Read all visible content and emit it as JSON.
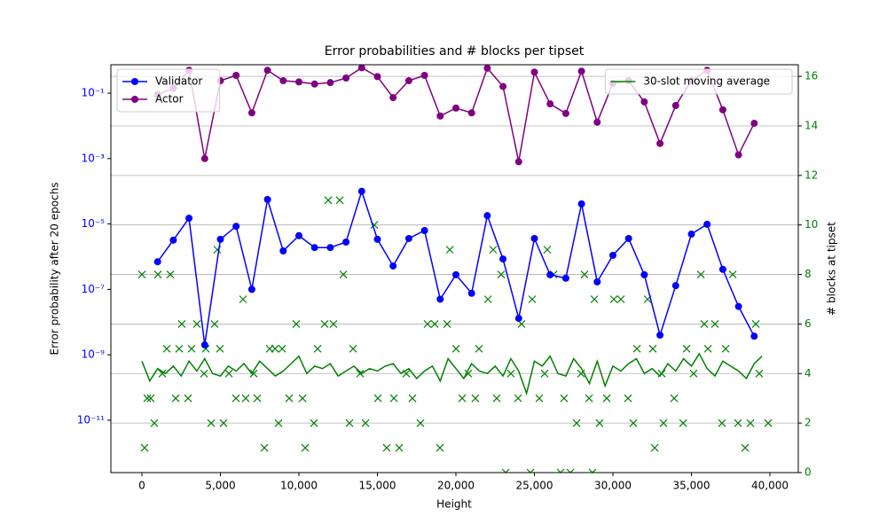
{
  "chart_data": {
    "type": "line",
    "title": "Error probabilities and # blocks per tipset",
    "xlabel": "Height",
    "ylabel": "Error probability after 20 epochs",
    "y2label": "# blocks at tipset",
    "ylabel_color": "blue",
    "y2label_color": "green",
    "xlim": [
      -1977,
      41808
    ],
    "xticks": [
      0,
      {
        "value": 5000,
        "label": "5,000"
      },
      {
        "value": 10000,
        "label": "10,000"
      },
      {
        "value": 15000,
        "label": "15,000"
      },
      {
        "value": 20000,
        "label": "20,000"
      },
      {
        "value": 25000,
        "label": "25,000"
      },
      {
        "value": 30000,
        "label": "30,000"
      },
      {
        "value": 35000,
        "label": "35,000"
      },
      {
        "value": 40000,
        "label": "40,000"
      }
    ],
    "yscale": "log",
    "ylim": [
      2.5e-13,
      0.74
    ],
    "yticks": [
      {
        "value": 1e-11,
        "label": "10⁻¹¹"
      },
      {
        "value": 1e-09,
        "label": "10⁻⁹"
      },
      {
        "value": 1e-07,
        "label": "10⁻⁷"
      },
      {
        "value": 1e-05,
        "label": "10⁻⁵"
      },
      {
        "value": 0.001,
        "label": "10⁻³"
      },
      {
        "value": 0.1,
        "label": "10⁻¹"
      }
    ],
    "y2lim": [
      0,
      16.47
    ],
    "y2ticks": [
      0,
      2,
      4,
      6,
      8,
      10,
      12,
      14,
      16
    ],
    "grid": "y2",
    "legend_loc": "upper left",
    "y2_legend_loc": "upper right",
    "series": [
      {
        "name": "Validator",
        "type": "line",
        "marker": "o",
        "color": "blue",
        "x": [
          1000,
          2000,
          3000,
          4000,
          5000,
          6000,
          7000,
          8000,
          9000,
          10000,
          11000,
          12000,
          13000,
          14000,
          15000,
          16000,
          17000,
          18000,
          19000,
          20000,
          21000,
          22000,
          23000,
          24000,
          25000,
          26000,
          27000,
          28000,
          29000,
          30000,
          31000,
          32000,
          33000,
          34000,
          35000,
          36000,
          37000,
          38000,
          39000
        ],
        "values": [
          7e-07,
          3.2e-06,
          1.5e-05,
          2e-09,
          3.4e-06,
          8.5e-06,
          1e-07,
          5.6e-05,
          1.5e-06,
          4.4e-06,
          1.9e-06,
          1.9e-06,
          2.8e-06,
          0.0001,
          3.4e-06,
          5.2e-07,
          3.6e-06,
          6.3e-06,
          5e-08,
          2.8e-07,
          7.6e-08,
          1.8e-05,
          8.5e-07,
          1.3e-08,
          3.6e-06,
          2.8e-07,
          2.2e-07,
          4.1e-05,
          1.7e-07,
          1.1e-06,
          3.6e-06,
          2.8e-07,
          4e-09,
          1.3e-07,
          4.9e-06,
          9.8e-06,
          4.1e-07,
          3e-08,
          3.7e-09
        ]
      },
      {
        "name": "Actor",
        "type": "line",
        "marker": "o",
        "color": "purple",
        "x": [
          1000,
          2000,
          3000,
          4000,
          5000,
          6000,
          7000,
          8000,
          9000,
          10000,
          11000,
          12000,
          13000,
          14000,
          15000,
          16000,
          17000,
          18000,
          19000,
          20000,
          21000,
          22000,
          23000,
          24000,
          25000,
          26000,
          27000,
          28000,
          29000,
          30000,
          31000,
          32000,
          33000,
          34000,
          35000,
          36000,
          37000,
          38000,
          39000
        ],
        "values": [
          0.09,
          0.14,
          0.5,
          0.001,
          0.24,
          0.35,
          0.025,
          0.5,
          0.24,
          0.22,
          0.19,
          0.21,
          0.29,
          0.6,
          0.32,
          0.073,
          0.24,
          0.35,
          0.02,
          0.035,
          0.025,
          0.58,
          0.16,
          0.0008,
          0.44,
          0.047,
          0.024,
          0.47,
          0.013,
          0.2,
          0.24,
          0.054,
          0.0029,
          0.042,
          0.24,
          0.5,
          0.031,
          0.0013,
          0.012
        ]
      },
      {
        "type": "scatter",
        "marker": "x",
        "color": "green",
        "axis": "y2",
        "x": [
          0,
          170,
          340,
          560,
          790,
          1020,
          1300,
          1580,
          1810,
          2150,
          2370,
          2540,
          2940,
          3160,
          3500,
          3960,
          4070,
          4410,
          4630,
          4800,
          4970,
          5200,
          5540,
          5990,
          6440,
          6610,
          7120,
          7350,
          7800,
          8140,
          8480,
          8700,
          8930,
          9380,
          9830,
          10230,
          10400,
          10960,
          11190,
          11640,
          11870,
          12200,
          12600,
          12830,
          13220,
          13450,
          13900,
          14240,
          14800,
          15030,
          15590,
          16050,
          16390,
          16840,
          17230,
          17740,
          18190,
          18650,
          18980,
          19440,
          19610,
          20010,
          20400,
          20790,
          21240,
          21470,
          22040,
          22370,
          22600,
          22880,
          23170,
          23500,
          23960,
          24180,
          24750,
          24860,
          25310,
          25650,
          25820,
          26220,
          26670,
          26890,
          27290,
          27690,
          27970,
          28190,
          28480,
          28700,
          28820,
          29150,
          29610,
          30060,
          30510,
          30960,
          31300,
          31530,
          32210,
          32540,
          32660,
          33110,
          33220,
          33900,
          34470,
          34690,
          35140,
          35600,
          35820,
          36050,
          36500,
          36950,
          37180,
          37630,
          37970,
          38420,
          38760,
          39100,
          39320,
          39890
        ],
        "values": [
          8,
          1,
          3,
          3,
          2,
          8,
          4,
          5,
          8,
          3,
          5,
          6,
          3,
          5,
          6,
          4,
          5,
          2,
          6,
          9,
          5,
          2,
          4,
          3,
          7,
          3,
          4,
          3,
          1,
          5,
          5,
          2,
          5,
          3,
          6,
          3,
          1,
          2,
          5,
          6,
          11,
          6,
          11,
          8,
          2,
          5,
          4,
          2,
          10,
          3,
          1,
          3,
          1,
          4,
          3,
          2,
          6,
          6,
          1,
          6,
          9,
          5,
          3,
          4,
          3,
          5,
          7,
          9,
          3,
          8,
          0,
          4,
          3,
          6,
          0,
          7,
          3,
          4,
          9,
          8,
          0,
          3,
          0,
          2,
          4,
          8,
          3,
          0,
          7,
          2,
          3,
          7,
          7,
          3,
          2,
          5,
          7,
          5,
          1,
          4,
          2,
          3,
          2,
          5,
          4,
          8,
          6,
          5,
          6,
          2,
          5,
          8,
          2,
          1,
          2,
          6,
          4,
          2
        ]
      },
      {
        "name": "30-slot moving average",
        "type": "line",
        "color": "green",
        "axis": "y2",
        "x": [
          0,
          500,
          1000,
          1500,
          2000,
          2500,
          3000,
          3500,
          4000,
          4500,
          5000,
          5500,
          6000,
          6500,
          7000,
          7500,
          8000,
          8500,
          9000,
          9500,
          10000,
          10500,
          11000,
          11500,
          12000,
          12500,
          13000,
          13500,
          14000,
          14500,
          15000,
          15500,
          16000,
          16500,
          17000,
          17500,
          18000,
          18500,
          19000,
          19500,
          20000,
          20500,
          21000,
          21500,
          22000,
          22500,
          23000,
          23500,
          24000,
          24500,
          25000,
          25500,
          26000,
          26500,
          27000,
          27500,
          28000,
          28500,
          29000,
          29500,
          30000,
          30500,
          31000,
          31500,
          32000,
          32500,
          33000,
          33500,
          34000,
          34500,
          35000,
          35500,
          36000,
          36500,
          37000,
          37500,
          38000,
          38500,
          39000,
          39500
        ],
        "values": [
          4.5,
          3.7,
          4.2,
          4.0,
          4.3,
          3.9,
          4.5,
          4.1,
          4.6,
          4.0,
          3.9,
          4.3,
          4.1,
          4.4,
          4.0,
          4.5,
          4.2,
          3.9,
          4.1,
          4.4,
          4.7,
          4.0,
          4.3,
          4.2,
          4.4,
          3.9,
          4.1,
          4.3,
          4.0,
          4.2,
          4.1,
          4.3,
          4.4,
          4.0,
          4.2,
          3.8,
          4.1,
          4.3,
          3.7,
          4.6,
          4.2,
          3.8,
          4.4,
          4.1,
          4.0,
          4.3,
          3.9,
          4.6,
          4.1,
          3.2,
          4.5,
          4.3,
          4.7,
          4.0,
          3.9,
          4.6,
          4.2,
          3.6,
          4.5,
          3.5,
          4.3,
          4.1,
          4.4,
          4.6,
          4.0,
          4.2,
          3.9,
          4.4,
          4.1,
          4.6,
          4.3,
          4.8,
          4.2,
          3.9,
          4.5,
          4.3,
          4.1,
          3.8,
          4.4,
          4.7
        ]
      }
    ]
  }
}
